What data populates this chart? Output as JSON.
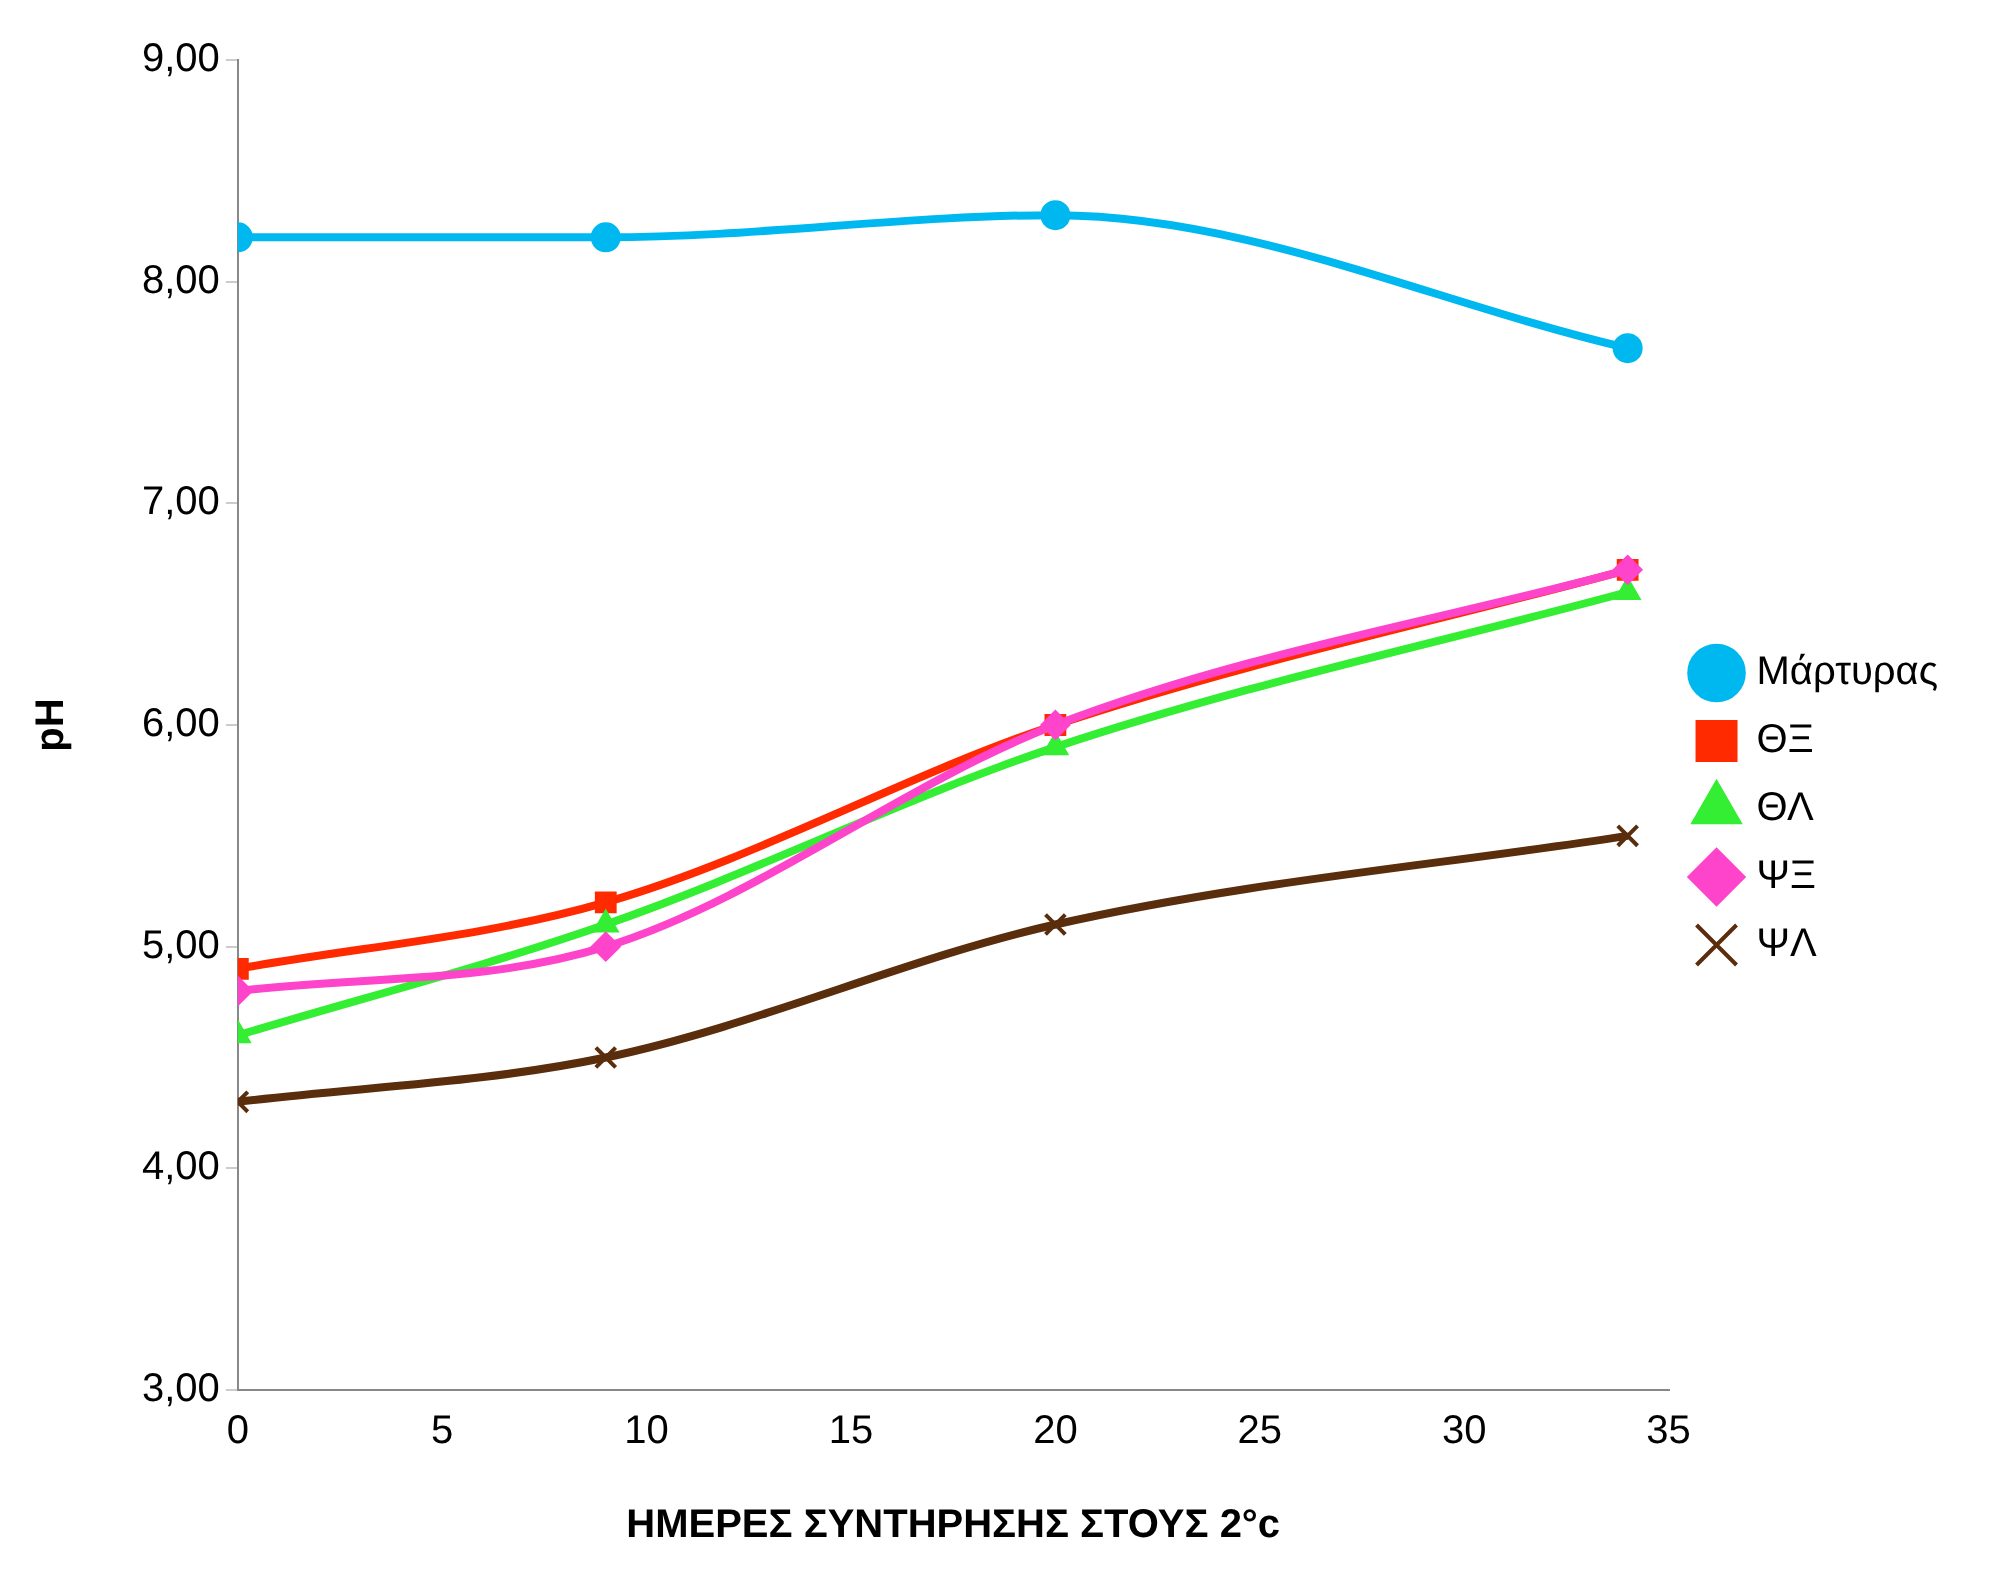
{
  "chart_data": {
    "type": "line",
    "xlabel": "ΗΜΕΡΕΣ ΣΥΝΤΗΡΗΣΗΣ ΣΤΟΥΣ 2°c",
    "ylabel": "pH",
    "x": [
      0,
      9,
      20,
      34
    ],
    "xlim": [
      0,
      35
    ],
    "xticks": [
      0,
      5,
      10,
      15,
      20,
      25,
      30,
      35
    ],
    "ylim": [
      3,
      9
    ],
    "yticks": [
      {
        "value": 3,
        "label": "3,00"
      },
      {
        "value": 4,
        "label": "4,00"
      },
      {
        "value": 5,
        "label": "5,00"
      },
      {
        "value": 6,
        "label": "6,00"
      },
      {
        "value": 7,
        "label": "7,00"
      },
      {
        "value": 8,
        "label": "8,00"
      },
      {
        "value": 9,
        "label": "9,00"
      }
    ],
    "grid": false,
    "legend": "right",
    "series": [
      {
        "name": "Μάρτυρας",
        "color": "#00b8f0",
        "marker": "circle",
        "values": [
          8.2,
          8.2,
          8.3,
          7.7
        ]
      },
      {
        "name": "ΘΞ",
        "color": "#ff2a00",
        "marker": "square",
        "values": [
          4.9,
          5.2,
          6.0,
          6.7
        ]
      },
      {
        "name": "ΘΛ",
        "color": "#33ee33",
        "marker": "triangle",
        "values": [
          4.6,
          5.1,
          5.9,
          6.6
        ]
      },
      {
        "name": "ΨΞ",
        "color": "#ff44cc",
        "marker": "diamond",
        "values": [
          4.8,
          5.0,
          6.0,
          6.7
        ]
      },
      {
        "name": "ΨΛ",
        "color": "#5a2d0c",
        "marker": "cross",
        "values": [
          4.3,
          4.5,
          5.1,
          5.5
        ]
      }
    ]
  }
}
